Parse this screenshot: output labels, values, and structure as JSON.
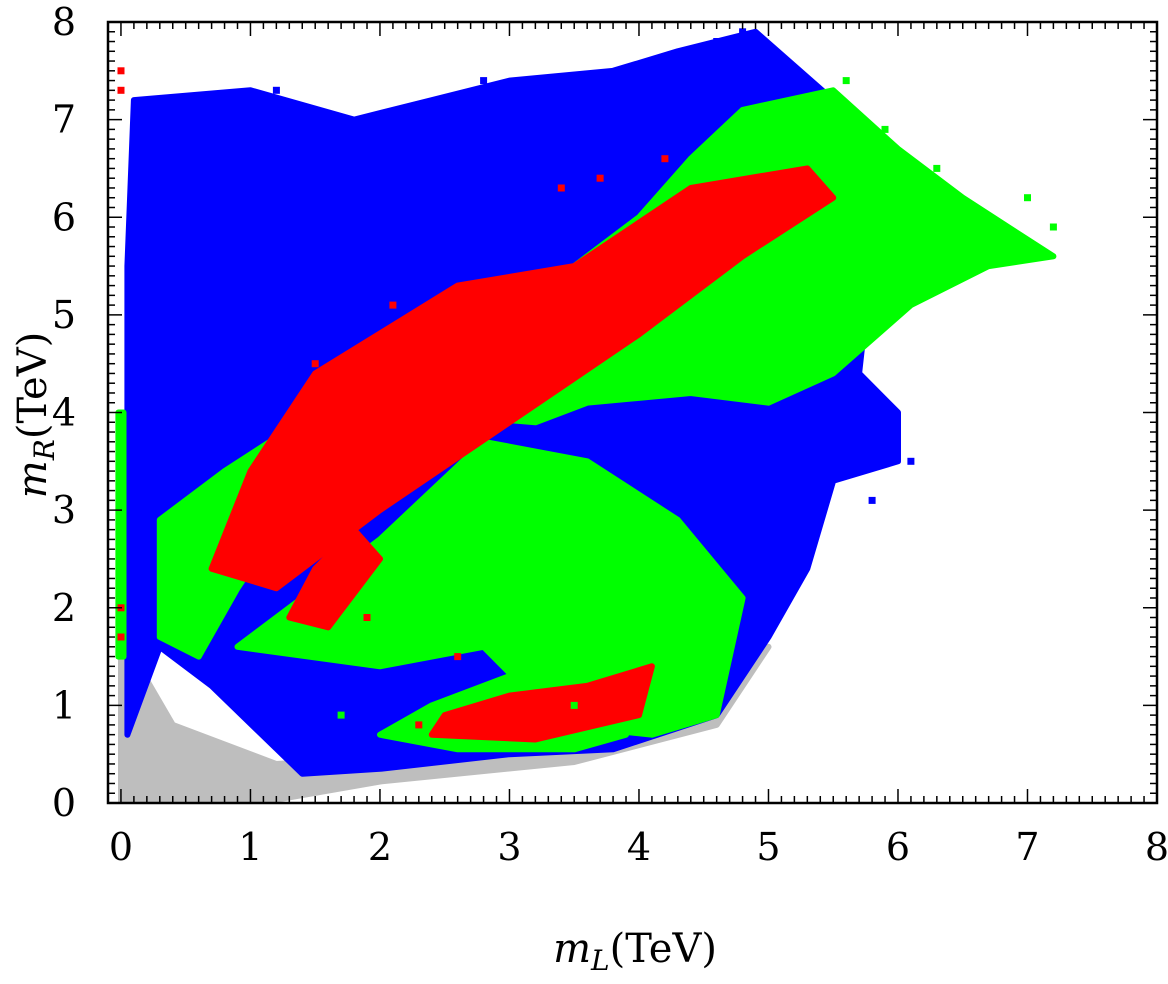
{
  "chart_data": {
    "type": "scatter",
    "title": "",
    "xlabel": "m_L(TeV)",
    "ylabel": "m_R(TeV)",
    "x_label_parts": {
      "sym": "m",
      "sub": "L",
      "unit": "(TeV)"
    },
    "y_label_parts": {
      "sym": "m",
      "sub": "R",
      "unit": "(TeV)"
    },
    "xlim": [
      -0.1,
      8
    ],
    "ylim": [
      0,
      8
    ],
    "xticks": [
      "0",
      "1",
      "2",
      "3",
      "4",
      "5",
      "6",
      "7",
      "8"
    ],
    "yticks": [
      "0",
      "1",
      "2",
      "3",
      "4",
      "5",
      "6",
      "7",
      "8"
    ],
    "grid": false,
    "legend": "none",
    "colors": {
      "gray": "#bebebe",
      "blue": "#0000ff",
      "green": "#00ff00",
      "red": "#ff0000"
    },
    "series": [
      {
        "color": "gray",
        "regions": [
          [
            [
              0,
              0
            ],
            [
              1.05,
              0
            ],
            [
              2.0,
              0.22
            ],
            [
              3.5,
              0.42
            ],
            [
              4.6,
              0.8
            ],
            [
              5.0,
              1.6
            ],
            [
              4.5,
              1.5
            ],
            [
              2.5,
              0.5
            ],
            [
              1.2,
              0.4
            ],
            [
              0.4,
              0.8
            ],
            [
              0.05,
              1.6
            ],
            [
              0,
              2.7
            ]
          ]
        ]
      },
      {
        "color": "blue",
        "regions": [
          [
            [
              0.05,
              0.7
            ],
            [
              0.3,
              1.6
            ],
            [
              0.7,
              1.2
            ],
            [
              1.4,
              0.3
            ],
            [
              2.0,
              0.35
            ],
            [
              3.0,
              0.5
            ],
            [
              3.8,
              0.55
            ],
            [
              4.6,
              0.9
            ],
            [
              5.0,
              1.7
            ],
            [
              5.3,
              2.4
            ],
            [
              5.5,
              3.3
            ],
            [
              6.0,
              3.5
            ],
            [
              6.0,
              4.0
            ],
            [
              5.7,
              4.4
            ],
            [
              5.8,
              5.6
            ],
            [
              5.3,
              6.4
            ],
            [
              5.5,
              7.2
            ],
            [
              4.9,
              7.9
            ],
            [
              4.3,
              7.7
            ],
            [
              3.8,
              7.5
            ],
            [
              3.0,
              7.4
            ],
            [
              2.4,
              7.2
            ],
            [
              1.8,
              7.0
            ],
            [
              1.0,
              7.3
            ],
            [
              0.1,
              7.2
            ],
            [
              0.05,
              5.5
            ],
            [
              0.05,
              3.0
            ]
          ]
        ],
        "x": [
          0.3,
          0.7,
          1.2,
          0.3,
          4.6,
          4.8,
          5.8,
          6.1,
          5.9,
          0.15,
          3.5,
          2.8
        ],
        "y": [
          7.1,
          7.2,
          7.3,
          6.0,
          7.8,
          7.9,
          3.1,
          3.5,
          3.8,
          5.2,
          7.3,
          7.4
        ]
      },
      {
        "color": "green",
        "regions": [
          [
            [
              0.3,
              2.9
            ],
            [
              0.8,
              3.4
            ],
            [
              1.5,
              4.0
            ],
            [
              2.3,
              4.0
            ],
            [
              3.2,
              3.9
            ],
            [
              3.6,
              4.1
            ],
            [
              4.4,
              4.2
            ],
            [
              5.0,
              4.1
            ],
            [
              5.5,
              4.4
            ],
            [
              6.1,
              5.1
            ],
            [
              6.7,
              5.5
            ],
            [
              7.2,
              5.6
            ],
            [
              6.5,
              6.2
            ],
            [
              6.0,
              6.7
            ],
            [
              5.5,
              7.3
            ],
            [
              4.8,
              7.1
            ],
            [
              4.4,
              6.6
            ],
            [
              4.0,
              6.0
            ],
            [
              3.0,
              5.0
            ],
            [
              2.2,
              4.2
            ],
            [
              1.4,
              3.2
            ],
            [
              0.9,
              2.2
            ],
            [
              0.6,
              1.5
            ],
            [
              0.3,
              1.7
            ]
          ],
          [
            [
              0.9,
              1.6
            ],
            [
              2.0,
              1.4
            ],
            [
              2.8,
              1.6
            ],
            [
              3.4,
              0.8
            ],
            [
              4.1,
              0.7
            ],
            [
              4.6,
              0.9
            ],
            [
              4.8,
              2.1
            ],
            [
              4.3,
              2.9
            ],
            [
              3.6,
              3.5
            ],
            [
              2.8,
              3.7
            ],
            [
              2.0,
              2.7
            ],
            [
              1.4,
              2.1
            ]
          ],
          [
            [
              2.0,
              0.7
            ],
            [
              2.6,
              0.55
            ],
            [
              3.5,
              0.55
            ],
            [
              3.9,
              0.7
            ],
            [
              3.6,
              1.4
            ],
            [
              3.0,
              1.3
            ],
            [
              2.4,
              1.0
            ]
          ],
          [
            [
              -0.02,
              1.5
            ],
            [
              0.02,
              1.5
            ],
            [
              0.02,
              4.0
            ],
            [
              -0.02,
              4.0
            ]
          ]
        ],
        "x": [
          6.7,
          7.0,
          7.2,
          6.3,
          5.9,
          5.6,
          2.9,
          0.9,
          3.5,
          4.3,
          1.7
        ],
        "y": [
          5.9,
          6.2,
          5.9,
          6.5,
          6.9,
          7.4,
          2.6,
          3.4,
          1.0,
          1.3,
          0.9
        ]
      },
      {
        "color": "red",
        "regions": [
          [
            [
              0.7,
              2.4
            ],
            [
              1.2,
              2.2
            ],
            [
              2.0,
              3.0
            ],
            [
              3.0,
              3.9
            ],
            [
              4.0,
              4.8
            ],
            [
              4.8,
              5.6
            ],
            [
              5.5,
              6.2
            ],
            [
              5.3,
              6.5
            ],
            [
              4.4,
              6.3
            ],
            [
              3.5,
              5.5
            ],
            [
              2.6,
              5.3
            ],
            [
              1.5,
              4.4
            ],
            [
              1.0,
              3.4
            ]
          ],
          [
            [
              1.3,
              1.9
            ],
            [
              1.6,
              1.8
            ],
            [
              2.0,
              2.5
            ],
            [
              1.8,
              2.8
            ],
            [
              1.5,
              2.4
            ]
          ],
          [
            [
              2.4,
              0.7
            ],
            [
              3.2,
              0.65
            ],
            [
              4.0,
              0.9
            ],
            [
              4.1,
              1.4
            ],
            [
              3.6,
              1.2
            ],
            [
              3.0,
              1.1
            ],
            [
              2.5,
              0.9
            ]
          ]
        ],
        "x": [
          0.0,
          0.0,
          0.0,
          0.0,
          1.5,
          2.1,
          3.4,
          3.7,
          4.2,
          1.9,
          2.6,
          2.3,
          3.9
        ],
        "y": [
          7.5,
          7.3,
          2.0,
          1.7,
          4.5,
          5.1,
          6.3,
          6.4,
          6.6,
          1.9,
          1.5,
          0.8,
          1.1
        ]
      }
    ]
  }
}
